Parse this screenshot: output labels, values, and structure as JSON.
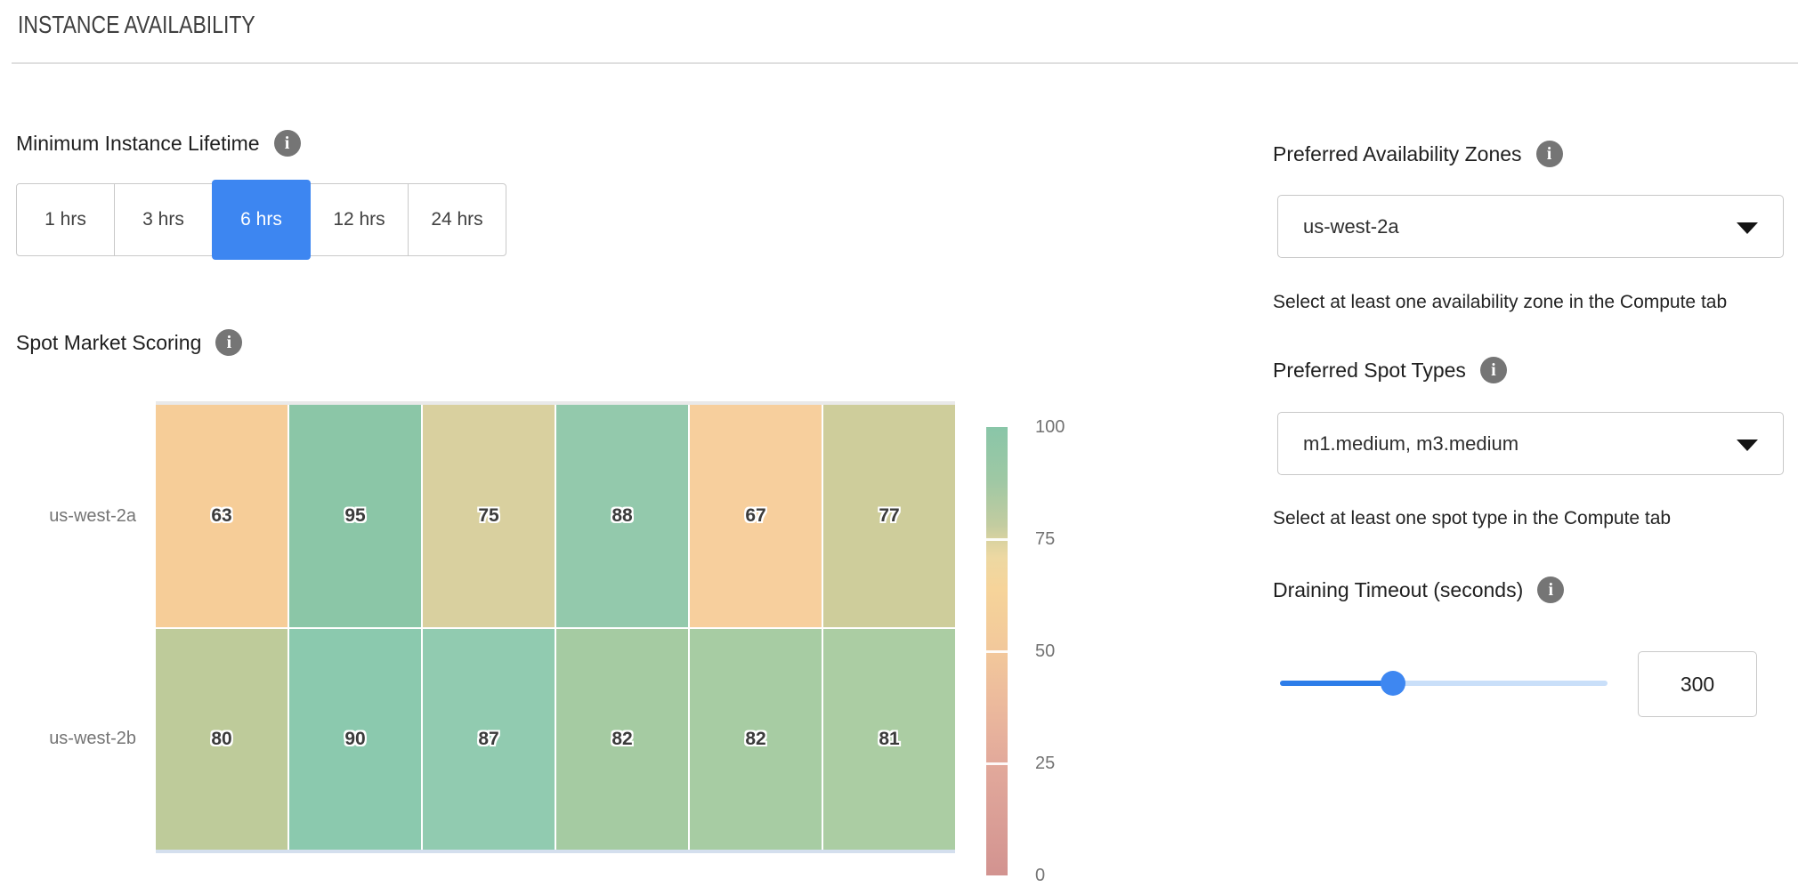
{
  "header": {
    "title": "INSTANCE AVAILABILITY"
  },
  "icons": {
    "info": "i",
    "caret_down": "triangle-down"
  },
  "colors": {
    "selected_button_blue": "#3d86f1",
    "slider_fill_blue": "#2d7de9",
    "slider_track_light": "#c9dff9",
    "slider_thumb_blue": "#3e87f1",
    "info_icon_gray": "#757575"
  },
  "lifetime": {
    "label": "Minimum Instance Lifetime",
    "selected_index": 2,
    "options": [
      {
        "label": "1 hrs"
      },
      {
        "label": "3 hrs"
      },
      {
        "label": "6 hrs"
      },
      {
        "label": "12 hrs"
      },
      {
        "label": "24 hrs"
      }
    ]
  },
  "scoring": {
    "label": "Spot Market Scoring"
  },
  "chart_data": {
    "type": "heatmap",
    "title": "Spot Market Scoring",
    "rows": [
      "us-west-2a",
      "us-west-2b"
    ],
    "columns": 6,
    "value_range": [
      0,
      100
    ],
    "series": [
      {
        "name": "us-west-2a",
        "values": [
          63,
          95,
          75,
          88,
          67,
          77
        ],
        "colors": [
          "#f6cd98",
          "#8bc6a7",
          "#d9d09f",
          "#93c9ac",
          "#f7cf9d",
          "#cecd9b"
        ]
      },
      {
        "name": "us-west-2b",
        "values": [
          80,
          90,
          87,
          82,
          82,
          81
        ],
        "colors": [
          "#becb9a",
          "#8bc9ae",
          "#91cbb0",
          "#a5cba2",
          "#a7cca3",
          "#abcda3"
        ]
      }
    ],
    "colorbar": {
      "ticks": [
        100,
        75,
        50,
        25,
        0
      ],
      "gradient_stops": [
        {
          "pos": 0,
          "color": "#89c6a8"
        },
        {
          "pos": 12,
          "color": "#9fc8a4"
        },
        {
          "pos": 22,
          "color": "#c3cca0"
        },
        {
          "pos": 25,
          "color": "#d8d2a0"
        },
        {
          "pos": 29,
          "color": "#edd8a2"
        },
        {
          "pos": 36,
          "color": "#f6d49a"
        },
        {
          "pos": 50,
          "color": "#f2c89b"
        },
        {
          "pos": 63,
          "color": "#ebb89c"
        },
        {
          "pos": 75,
          "color": "#e2a99b"
        },
        {
          "pos": 88,
          "color": "#da9e96"
        },
        {
          "pos": 100,
          "color": "#d29390"
        }
      ]
    }
  },
  "right_panel": {
    "availability_zones": {
      "label": "Preferred Availability Zones",
      "value": "us-west-2a",
      "helper": "Select at least one availability zone in the Compute tab"
    },
    "spot_types": {
      "label": "Preferred Spot Types",
      "value": "m1.medium, m3.medium",
      "helper": "Select at least one spot type in the Compute tab"
    },
    "draining_timeout": {
      "label": "Draining Timeout (seconds)",
      "value": "300",
      "slider_percent": 34.5
    }
  }
}
